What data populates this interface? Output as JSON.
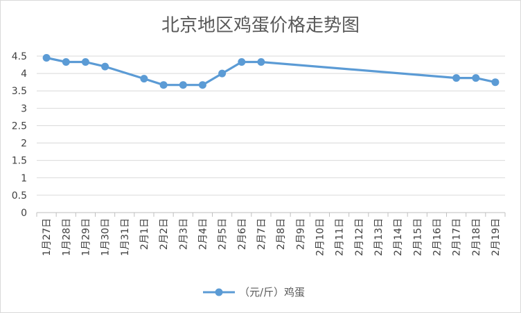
{
  "chart_data": {
    "type": "line",
    "title": "北京地区鸡蛋价格走势图",
    "categories": [
      "1月27日",
      "1月28日",
      "1月29日",
      "1月30日",
      "1月31日",
      "2月1日",
      "2月2日",
      "2月3日",
      "2月4日",
      "2月5日",
      "2月6日",
      "2月7日",
      "2月8日",
      "2月9日",
      "2月10日",
      "2月11日",
      "2月12日",
      "2月13日",
      "2月14日",
      "2月15日",
      "2月16日",
      "2月17日",
      "2月18日",
      "2月19日"
    ],
    "series": [
      {
        "name": "（元/斤）鸡蛋",
        "color": "#5b9bd5",
        "values": [
          4.45,
          4.33,
          4.33,
          4.2,
          null,
          3.85,
          3.67,
          3.67,
          3.67,
          4.0,
          4.33,
          4.33,
          null,
          null,
          null,
          null,
          null,
          null,
          null,
          null,
          null,
          3.87,
          3.87,
          3.75
        ]
      }
    ],
    "y_ticks": [
      "0",
      "0.5",
      "1",
      "1.5",
      "2",
      "2.5",
      "3",
      "3.5",
      "4",
      "4.5"
    ],
    "ylim": [
      0,
      4.5
    ],
    "xlabel": "",
    "ylabel": "",
    "grid": true,
    "legend": "bottom"
  }
}
